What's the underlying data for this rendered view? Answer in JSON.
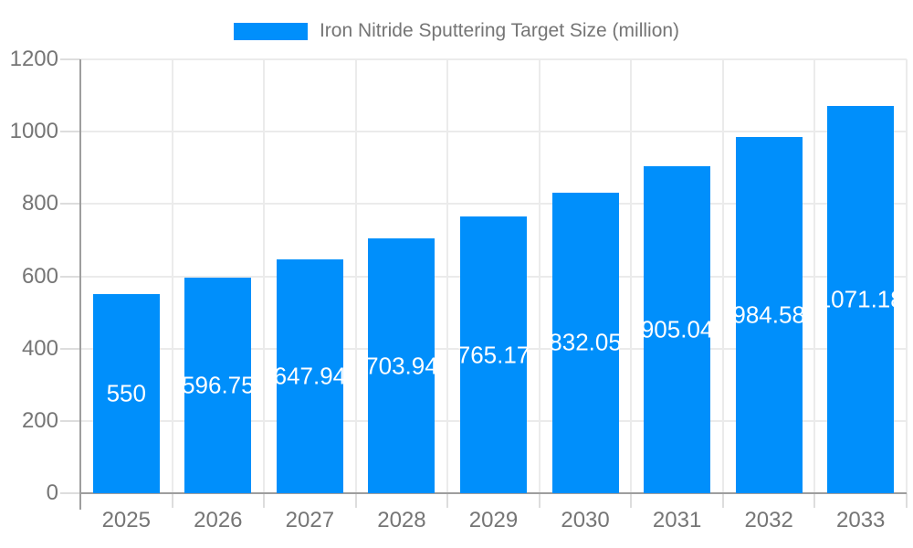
{
  "chart_data": {
    "type": "bar",
    "title": "Iron Nitride Sputtering Target Size (million)",
    "series_name": "Iron Nitride Sputtering Target Size (million)",
    "categories": [
      "2025",
      "2026",
      "2027",
      "2028",
      "2029",
      "2030",
      "2031",
      "2032",
      "2033"
    ],
    "values": [
      550,
      596.75,
      647.94,
      703.94,
      765.17,
      832.05,
      905.04,
      984.58,
      1071.18
    ],
    "value_labels": [
      "550",
      "596.75",
      "647.94",
      "703.94",
      "765.17",
      "832.05",
      "905.04",
      "984.58",
      "1071.18"
    ],
    "xlabel": "",
    "ylabel": "",
    "ylim": [
      0,
      1200
    ],
    "yticks": [
      0,
      200,
      400,
      600,
      800,
      1000,
      1200
    ],
    "ytick_labels": [
      "0",
      "200",
      "400",
      "600",
      "800",
      "1000",
      "1200"
    ],
    "grid": true,
    "legend_position": "top",
    "bar_color": "#008FFB",
    "bar_label_color": "#ffffff",
    "axis_text_color": "#757575",
    "gridline_color": "#ebebeb",
    "axis_line_color": "#9e9e9e"
  }
}
